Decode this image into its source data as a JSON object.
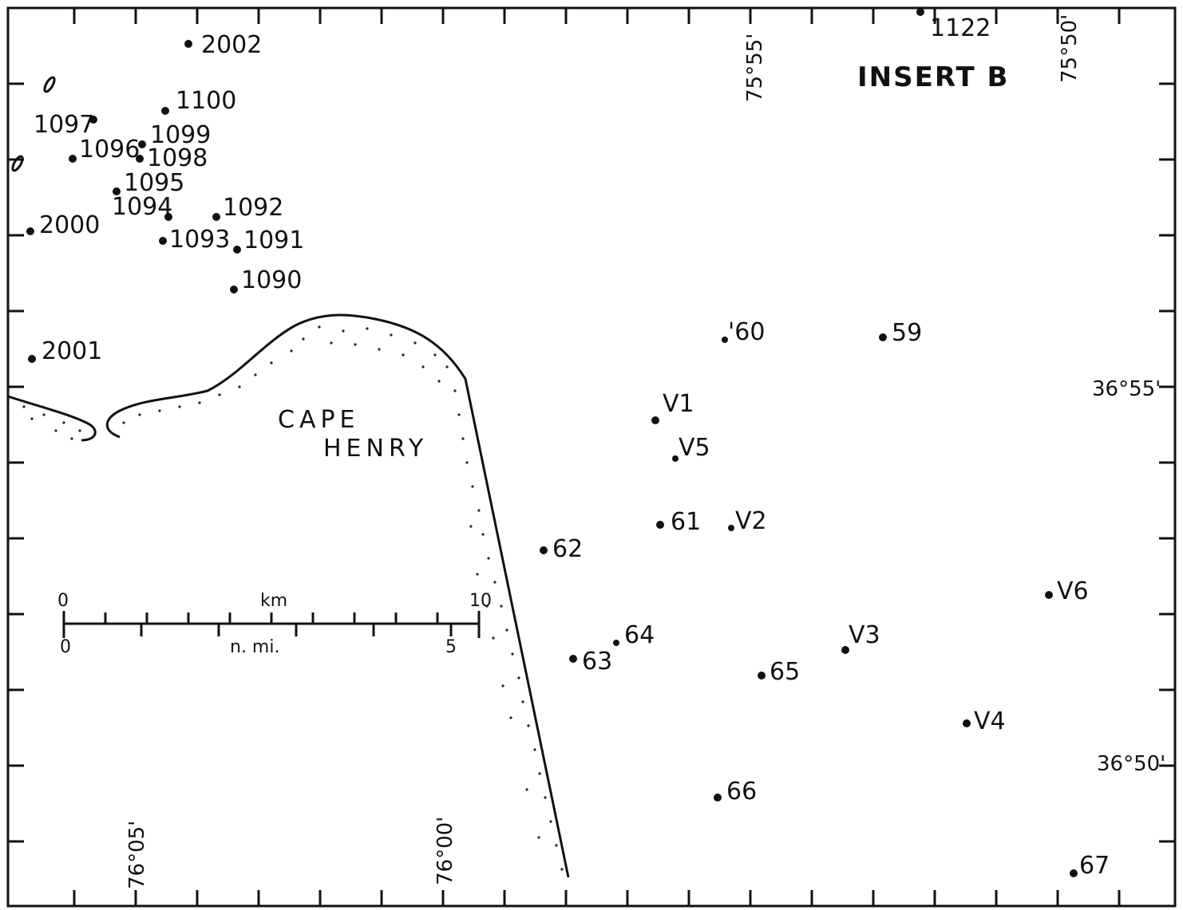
{
  "map": {
    "insert_title": "INSERT B",
    "place_label_line1": "CAPE",
    "place_label_line2": "HENRY",
    "longitude_labels": [
      "76°05'",
      "76°00'",
      "75°55'",
      "75°50'"
    ],
    "latitude_labels": [
      "36°55'",
      "36°50'"
    ],
    "scale_bar": {
      "km_unit": "km",
      "km_start": "0",
      "km_end": "10",
      "nmi_unit": "n. mi.",
      "nmi_start": "0",
      "nmi_end": "5"
    },
    "stations": [
      "2002",
      "1100",
      "1097",
      "1099",
      "1096",
      "1098",
      "1095",
      "1094",
      "1092",
      "2000",
      "1093",
      "1091",
      "1090",
      "2001",
      "1122",
      "'60",
      "59",
      "V1",
      "V5",
      "61",
      "V2",
      "62",
      "V6",
      "64",
      "63",
      "V3",
      "65",
      "V4",
      "66",
      "67"
    ]
  }
}
